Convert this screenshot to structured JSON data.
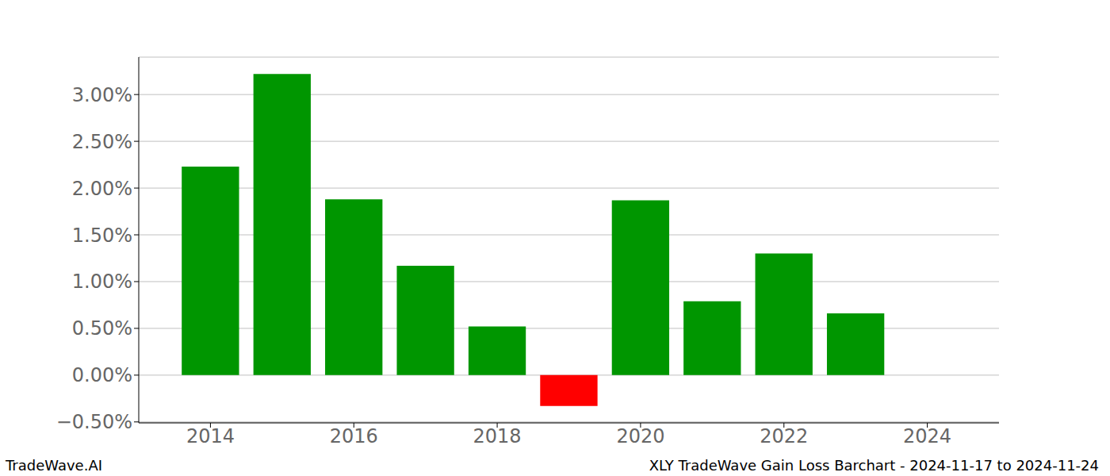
{
  "chart_data": {
    "type": "bar",
    "title": "XLY TradeWave Gain Loss Barchart - 2024-11-17 to 2024-11-24",
    "annotations": [
      "TradeWave.AI"
    ],
    "x": [
      2014,
      2015,
      2016,
      2017,
      2018,
      2019,
      2020,
      2021,
      2022,
      2023
    ],
    "values": [
      2.23,
      3.22,
      1.88,
      1.17,
      0.52,
      -0.33,
      1.87,
      0.79,
      1.3,
      0.66
    ],
    "colors": [
      "#009600",
      "#009600",
      "#009600",
      "#009600",
      "#009600",
      "#ff0000",
      "#009600",
      "#009600",
      "#009600",
      "#009600"
    ],
    "xlim": [
      2013,
      2025
    ],
    "xticks": [
      2014,
      2016,
      2018,
      2020,
      2022,
      2024
    ],
    "ylim": [
      -0.51,
      3.4
    ],
    "yticks": [
      {
        "value": -0.5,
        "label": "−0.50%"
      },
      {
        "value": 0,
        "label": "0.00%"
      },
      {
        "value": 0.5,
        "label": "0.50%"
      },
      {
        "value": 1,
        "label": "1.00%"
      },
      {
        "value": 1.5,
        "label": "1.50%"
      },
      {
        "value": 2,
        "label": "2.00%"
      },
      {
        "value": 2.5,
        "label": "2.50%"
      },
      {
        "value": 3,
        "label": "3.00%"
      }
    ],
    "grid": true
  }
}
